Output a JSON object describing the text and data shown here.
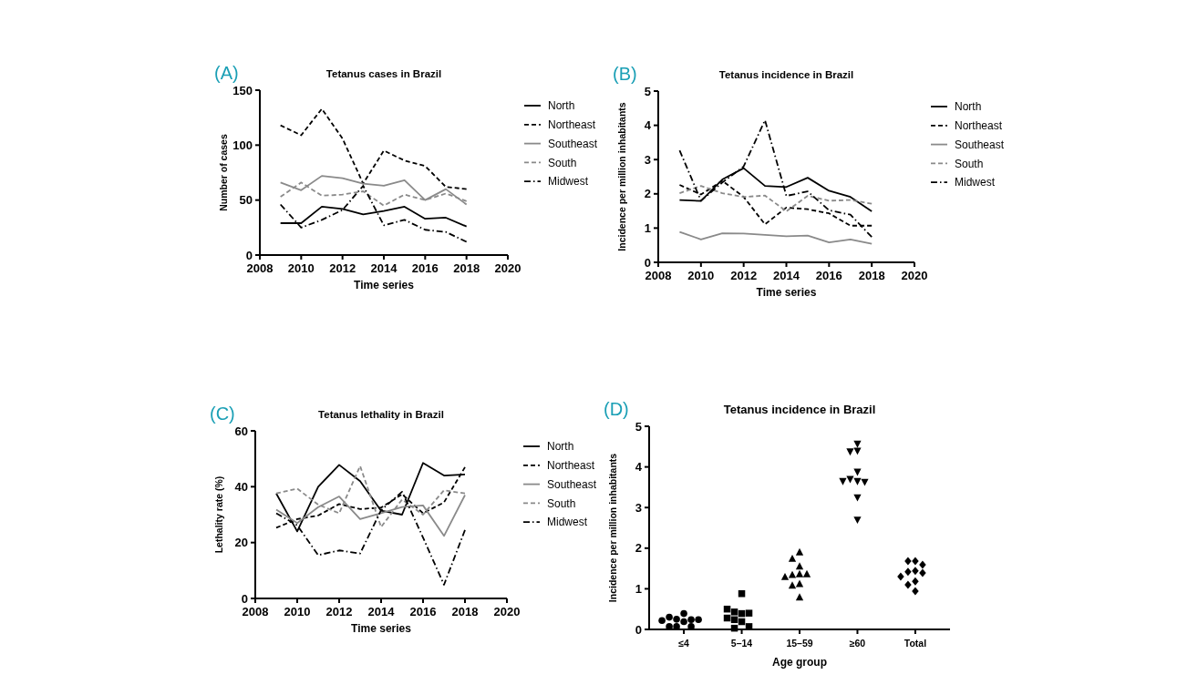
{
  "chart_data": [
    {
      "type": "line",
      "title": "Tetanus cases in Brazil",
      "xlabel": "Time series",
      "ylabel": "Number of cases",
      "annotations": [
        "(A)"
      ],
      "x": [
        2009,
        2010,
        2011,
        2012,
        2013,
        2014,
        2015,
        2016,
        2017,
        2018
      ],
      "xlim": [
        2008,
        2020
      ],
      "xticks": [
        2008,
        2010,
        2012,
        2014,
        2016,
        2018,
        2020
      ],
      "ylim": [
        0,
        150
      ],
      "yticks": [
        0,
        50,
        100,
        150
      ],
      "legend": "right",
      "series": [
        {
          "name": "North",
          "color": "#000000",
          "line_style": "solid",
          "values": [
            29,
            29,
            44,
            42,
            37,
            40,
            44,
            33,
            34,
            26
          ]
        },
        {
          "name": "Northeast",
          "color": "#000000",
          "line_style": "dashed",
          "values": [
            118,
            109,
            133,
            106,
            65,
            95,
            86,
            81,
            62,
            60
          ]
        },
        {
          "name": "Southeast",
          "color": "#8a8a8a",
          "line_style": "solid",
          "values": [
            66,
            59,
            72,
            70,
            65,
            63,
            68,
            50,
            60,
            46
          ]
        },
        {
          "name": "South",
          "color": "#8a8a8a",
          "line_style": "dashed",
          "values": [
            53,
            66,
            54,
            55,
            58,
            45,
            55,
            50,
            56,
            49
          ]
        },
        {
          "name": "Midwest",
          "color": "#000000",
          "line_style": "dotted",
          "values": [
            46,
            25,
            32,
            41,
            63,
            27,
            32,
            23,
            21,
            12
          ]
        }
      ]
    },
    {
      "type": "line",
      "title": "Tetanus incidence in Brazil",
      "xlabel": "Time series",
      "ylabel": "Incidence per million inhabitants",
      "annotations": [
        "(B)"
      ],
      "x": [
        2009,
        2010,
        2011,
        2012,
        2013,
        2014,
        2015,
        2016,
        2017,
        2018
      ],
      "xlim": [
        2008,
        2020
      ],
      "xticks": [
        2008,
        2010,
        2012,
        2014,
        2016,
        2018,
        2020
      ],
      "ylim": [
        0,
        5
      ],
      "yticks": [
        0,
        1,
        2,
        3,
        4,
        5
      ],
      "legend": "right",
      "series": [
        {
          "name": "North",
          "color": "#000000",
          "line_style": "solid",
          "values": [
            1.82,
            1.79,
            2.42,
            2.75,
            2.23,
            2.2,
            2.47,
            2.09,
            1.91,
            1.49
          ]
        },
        {
          "name": "Northeast",
          "color": "#000000",
          "line_style": "dashed",
          "values": [
            2.26,
            1.98,
            2.38,
            1.91,
            1.11,
            1.6,
            1.55,
            1.43,
            1.07,
            1.07
          ]
        },
        {
          "name": "Southeast",
          "color": "#8a8a8a",
          "line_style": "solid",
          "values": [
            0.89,
            0.67,
            0.85,
            0.84,
            0.8,
            0.76,
            0.78,
            0.58,
            0.67,
            0.54
          ]
        },
        {
          "name": "South",
          "color": "#8a8a8a",
          "line_style": "dashed",
          "values": [
            2.02,
            2.23,
            2.02,
            1.91,
            1.95,
            1.49,
            1.94,
            1.8,
            1.82,
            1.71
          ]
        },
        {
          "name": "Midwest",
          "color": "#000000",
          "line_style": "dotted",
          "values": [
            3.27,
            1.8,
            2.33,
            2.8,
            4.15,
            1.94,
            2.07,
            1.52,
            1.39,
            0.74
          ]
        }
      ]
    },
    {
      "type": "line",
      "title": "Tetanus lethality in Brazil",
      "xlabel": "Time series",
      "ylabel": "Lethality rate (%)",
      "annotations": [
        "(C)"
      ],
      "x": [
        2009,
        2010,
        2011,
        2012,
        2013,
        2014,
        2015,
        2016,
        2017,
        2018
      ],
      "xlim": [
        2008,
        2020
      ],
      "xticks": [
        2008,
        2010,
        2012,
        2014,
        2016,
        2018,
        2020
      ],
      "ylim": [
        0,
        60
      ],
      "yticks": [
        0,
        20,
        40,
        60
      ],
      "legend": "right",
      "series": [
        {
          "name": "North",
          "color": "#000000",
          "line_style": "solid",
          "values": [
            37.6,
            24,
            40,
            47.8,
            42,
            31.4,
            30,
            48.5,
            44,
            44.4
          ]
        },
        {
          "name": "Northeast",
          "color": "#000000",
          "line_style": "dashed",
          "values": [
            25.3,
            28.4,
            29.7,
            33.8,
            32,
            32.5,
            37.3,
            30.5,
            34.4,
            47
          ]
        },
        {
          "name": "Southeast",
          "color": "#8a8a8a",
          "line_style": "solid",
          "values": [
            31.8,
            27,
            32.7,
            36.5,
            28.4,
            30.5,
            32.7,
            33.3,
            22.4,
            37
          ]
        },
        {
          "name": "South",
          "color": "#8a8a8a",
          "line_style": "dashed",
          "values": [
            37.6,
            39.3,
            33.6,
            30.5,
            47.4,
            25.6,
            35.4,
            30,
            38.7,
            37.6
          ]
        },
        {
          "name": "Midwest",
          "color": "#000000",
          "line_style": "dotted",
          "values": [
            30.5,
            26.2,
            15.5,
            17.2,
            16.1,
            31.6,
            38.2,
            21.8,
            4.9,
            24.5
          ]
        }
      ]
    },
    {
      "type": "scatter",
      "title": "Tetanus incidence in Brazil",
      "xlabel": "Age group",
      "ylabel": "Incidence per million inhabitants",
      "annotations": [
        "(D)"
      ],
      "categories": [
        "≤4",
        "5–14",
        "15–59",
        "≥60",
        "Total"
      ],
      "ylim": [
        0,
        5
      ],
      "yticks": [
        0,
        1,
        2,
        3,
        4,
        5
      ],
      "series": [
        {
          "color": "#000000",
          "marker": "circle",
          "x": [
            "≤4",
            "≤4",
            "≤4",
            "≤4",
            "≤4",
            "≤4",
            "≤4",
            "≤4",
            "≤4",
            "≤4"
          ],
          "values": [
            0.39,
            0.25,
            0.24,
            0.3,
            0.19,
            0.24,
            0.22,
            0.07,
            0.07,
            0.07
          ]
        },
        {
          "color": "#000000",
          "marker": "square",
          "x": [
            "5–14",
            "5–14",
            "5–14",
            "5–14",
            "5–14",
            "5–14",
            "5–14",
            "5–14",
            "5–14",
            "5–14"
          ],
          "values": [
            0.88,
            0.39,
            0.43,
            0.4,
            0.5,
            0.19,
            0.24,
            0.28,
            0.03,
            0.07
          ]
        },
        {
          "color": "#000000",
          "marker": "triangle",
          "x": [
            "15–59",
            "15–59",
            "15–59",
            "15–59",
            "15–59",
            "15–59",
            "15–59",
            "15–59",
            "15–59",
            "15–59"
          ],
          "values": [
            1.9,
            1.74,
            1.55,
            1.36,
            1.34,
            1.36,
            1.29,
            1.12,
            1.08,
            0.79
          ]
        },
        {
          "color": "#000000",
          "marker": "triangle-down",
          "x": [
            "≥60",
            "≥60",
            "≥60",
            "≥60",
            "≥60",
            "≥60",
            "≥60",
            "≥60",
            "≥60",
            "≥60"
          ],
          "values": [
            4.57,
            4.4,
            4.38,
            3.88,
            3.65,
            3.7,
            3.63,
            3.65,
            3.25,
            2.7
          ]
        },
        {
          "color": "#000000",
          "marker": "diamond",
          "x": [
            "Total",
            "Total",
            "Total",
            "Total",
            "Total",
            "Total",
            "Total",
            "Total",
            "Total",
            "Total"
          ],
          "values": [
            1.68,
            1.68,
            1.59,
            1.44,
            1.42,
            1.39,
            1.3,
            1.18,
            1.1,
            0.94
          ]
        }
      ]
    }
  ]
}
